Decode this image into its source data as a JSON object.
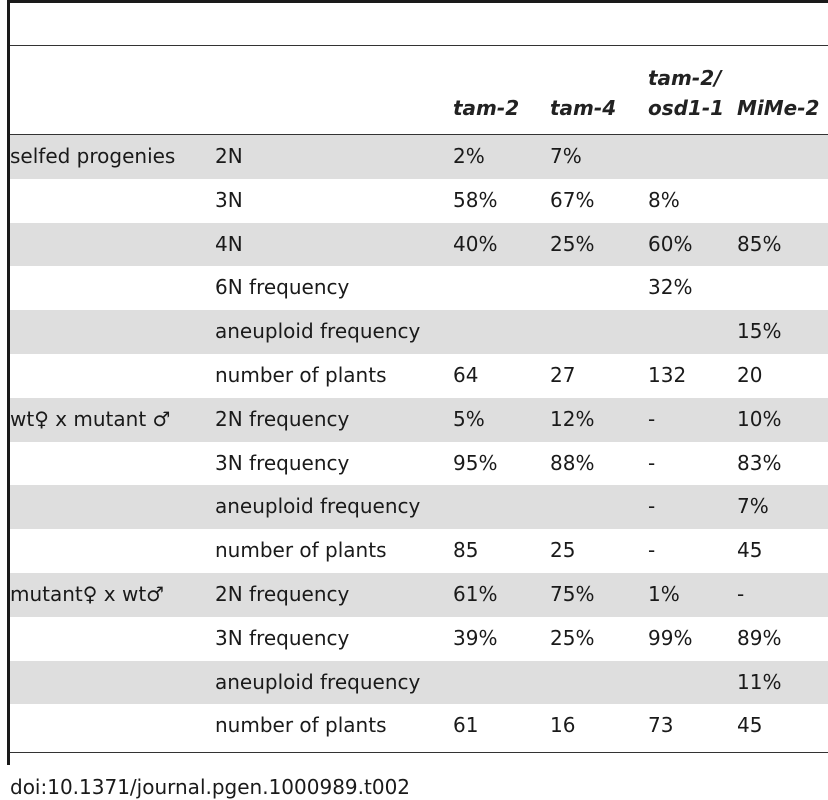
{
  "table": {
    "columns": [
      "",
      "",
      "tam-2",
      "tam-4",
      "tam-2/\nosd1-1",
      "MiMe-2"
    ],
    "rows": [
      {
        "group": "selfed progenies",
        "label": "2N",
        "tam2": "2%",
        "tam4": "7%",
        "tam2osd": "",
        "mime2": "",
        "shaded": true
      },
      {
        "group": "",
        "label": "3N",
        "tam2": "58%",
        "tam4": "67%",
        "tam2osd": "8%",
        "mime2": "",
        "shaded": false
      },
      {
        "group": "",
        "label": "4N",
        "tam2": "40%",
        "tam4": "25%",
        "tam2osd": "60%",
        "mime2": "85%",
        "shaded": true
      },
      {
        "group": "",
        "label": "6N frequency",
        "tam2": "",
        "tam4": "",
        "tam2osd": "32%",
        "mime2": "",
        "shaded": false
      },
      {
        "group": "",
        "label": "aneuploid frequency",
        "tam2": "",
        "tam4": "",
        "tam2osd": "",
        "mime2": "15%",
        "shaded": true
      },
      {
        "group": "",
        "label": "number of plants",
        "tam2": "64",
        "tam4": "27",
        "tam2osd": "132",
        "mime2": "20",
        "shaded": false
      },
      {
        "group": "wt♀ x mutant ♂",
        "label": "2N frequency",
        "tam2": "5%",
        "tam4": "12%",
        "tam2osd": "-",
        "mime2": "10%",
        "shaded": true
      },
      {
        "group": "",
        "label": "3N frequency",
        "tam2": "95%",
        "tam4": "88%",
        "tam2osd": "-",
        "mime2": "83%",
        "shaded": false
      },
      {
        "group": "",
        "label": "aneuploid frequency",
        "tam2": "",
        "tam4": "",
        "tam2osd": "-",
        "mime2": "7%",
        "shaded": true
      },
      {
        "group": "",
        "label": "number of plants",
        "tam2": "85",
        "tam4": "25",
        "tam2osd": "-",
        "mime2": "45",
        "shaded": false
      },
      {
        "group": "mutant♀ x wt♂",
        "label": "2N frequency",
        "tam2": "61%",
        "tam4": "75%",
        "tam2osd": "1%",
        "mime2": "-",
        "shaded": true
      },
      {
        "group": "",
        "label": "3N frequency",
        "tam2": "39%",
        "tam4": "25%",
        "tam2osd": "99%",
        "mime2": "89%",
        "shaded": false
      },
      {
        "group": "",
        "label": "aneuploid frequency",
        "tam2": "",
        "tam4": "",
        "tam2osd": "",
        "mime2": "11%",
        "shaded": true
      },
      {
        "group": "",
        "label": "number of plants",
        "tam2": "61",
        "tam4": "16",
        "tam2osd": "73",
        "mime2": "45",
        "shaded": false
      }
    ]
  },
  "footer": {
    "doi": "doi:10.1371/journal.pgen.1000989.t002"
  },
  "colors": {
    "shaded_row": "#dedede",
    "rule": "#1a1a1a"
  }
}
